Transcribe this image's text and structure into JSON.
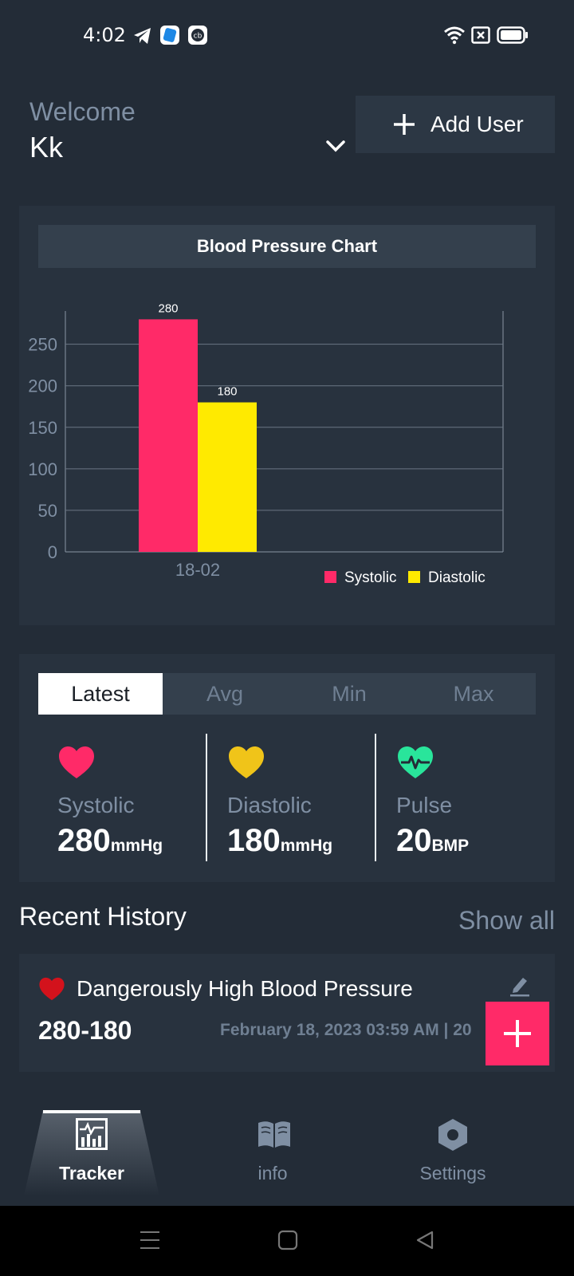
{
  "status_bar": {
    "time": "4:02",
    "left_icons": [
      "telegram-icon",
      "app-icon",
      "cb-icon"
    ],
    "right_icons": [
      "wifi-icon",
      "sim-icon",
      "battery-icon"
    ]
  },
  "header": {
    "welcome": "Welcome",
    "user": "Kk",
    "add_user_label": "Add User"
  },
  "chart_card": {
    "title": "Blood Pressure Chart"
  },
  "chart_data": {
    "type": "bar",
    "categories": [
      "18-02"
    ],
    "series": [
      {
        "name": "Systolic",
        "values": [
          280
        ],
        "color": "#ff2a68"
      },
      {
        "name": "Diastolic",
        "values": [
          180
        ],
        "color": "#ffea00"
      }
    ],
    "data_labels": [
      "280",
      "180"
    ],
    "yticks": [
      "0",
      "50",
      "100",
      "150",
      "200",
      "250"
    ],
    "ylim": [
      0,
      290
    ],
    "grid": true,
    "legend": "bottom-right"
  },
  "stats": {
    "tabs": [
      {
        "label": "Latest",
        "active": true
      },
      {
        "label": "Avg",
        "active": false
      },
      {
        "label": "Min",
        "active": false
      },
      {
        "label": "Max",
        "active": false
      }
    ],
    "systolic": {
      "label": "Systolic",
      "value": "280",
      "unit": "mmHg",
      "color": "#ff2a68"
    },
    "diastolic": {
      "label": "Diastolic",
      "value": "180",
      "unit": "mmHg",
      "color": "#f0c419"
    },
    "pulse": {
      "label": "Pulse",
      "value": "20",
      "unit": "BMP",
      "color": "#29e59b"
    }
  },
  "history": {
    "title": "Recent History",
    "show_all": "Show all",
    "entries": [
      {
        "status": "Dangerously High Blood Pressure",
        "value": "280-180",
        "date": "February 18, 2023 03:59 AM | 20"
      }
    ]
  },
  "bottom_nav": {
    "items": [
      {
        "label": "Tracker",
        "icon": "chart-icon",
        "active": true
      },
      {
        "label": "info",
        "icon": "book-icon",
        "active": false
      },
      {
        "label": "Settings",
        "icon": "settings-icon",
        "active": false
      }
    ]
  },
  "colors": {
    "background": "#232c37",
    "card": "#28323e",
    "accent": "#ff2a68"
  }
}
